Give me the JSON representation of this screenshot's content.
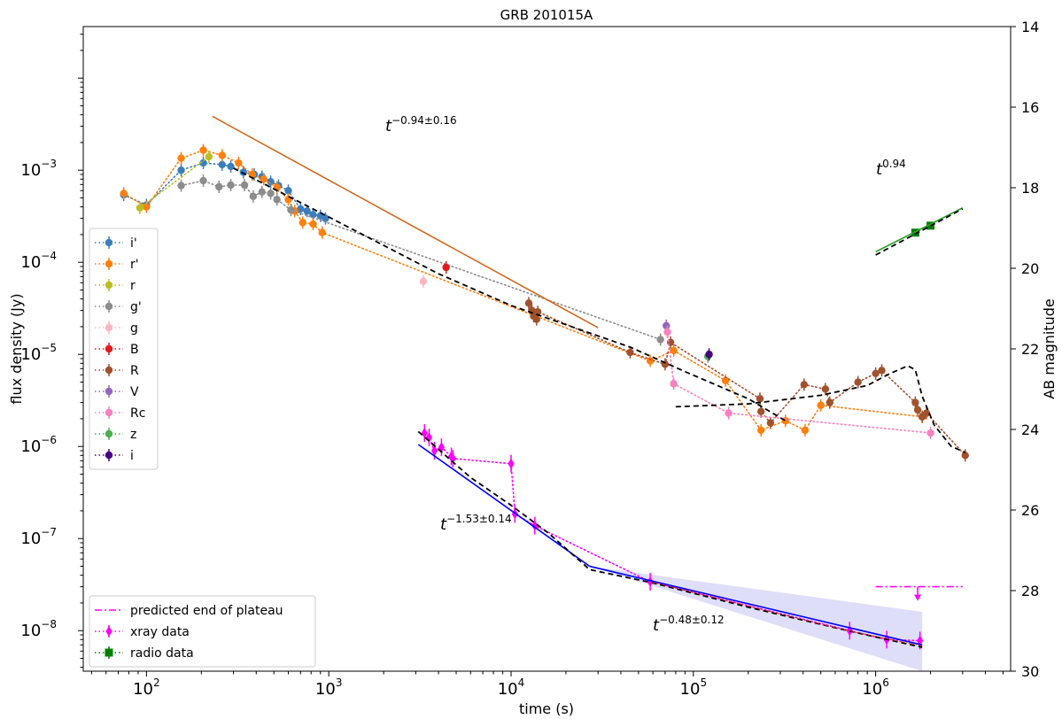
{
  "chart_data": {
    "type": "scatter",
    "title": "GRB 201015A",
    "xlabel": "time (s)",
    "ylabel": "flux density (Jy)",
    "y2label": "AB magnitude",
    "xscale": "log",
    "yscale": "log",
    "xlim": [
      45,
      5500000
    ],
    "ylim": [
      3.63e-09,
      0.0363
    ],
    "y2lim": [
      30,
      14
    ],
    "grid": false,
    "x_ticks": [
      {
        "value": 100,
        "base": "10",
        "exp": "2"
      },
      {
        "value": 1000,
        "base": "10",
        "exp": "3"
      },
      {
        "value": 10000,
        "base": "10",
        "exp": "4"
      },
      {
        "value": 100000,
        "base": "10",
        "exp": "5"
      },
      {
        "value": 1000000,
        "base": "10",
        "exp": "6"
      }
    ],
    "y_ticks": [
      {
        "value": 1e-08,
        "base": "10",
        "exp": "−8"
      },
      {
        "value": 1e-07,
        "base": "10",
        "exp": "−7"
      },
      {
        "value": 1e-06,
        "base": "10",
        "exp": "−6"
      },
      {
        "value": 1e-05,
        "base": "10",
        "exp": "−5"
      },
      {
        "value": 0.0001,
        "base": "10",
        "exp": "−4"
      },
      {
        "value": 0.001,
        "base": "10",
        "exp": "−3"
      }
    ],
    "y2_ticks": [
      "14",
      "16",
      "18",
      "20",
      "22",
      "24",
      "26",
      "28",
      "30"
    ],
    "series": [
      {
        "name": "i'",
        "color": "#3c7ebb",
        "marker": "circle",
        "points": [
          [
            75,
            0.00054
          ],
          [
            100,
            0.00042
          ],
          [
            155,
            0.001
          ],
          [
            205,
            0.0012
          ],
          [
            260,
            0.00115
          ],
          [
            290,
            0.0011
          ],
          [
            340,
            0.00095
          ],
          [
            390,
            0.0009
          ],
          [
            430,
            0.00085
          ],
          [
            480,
            0.00075
          ],
          [
            530,
            0.00068
          ],
          [
            600,
            0.0006
          ],
          [
            700,
            0.00038
          ],
          [
            760,
            0.00036
          ],
          [
            820,
            0.00033
          ],
          [
            900,
            0.00032
          ],
          [
            960,
            0.0003
          ]
        ]
      },
      {
        "name": "r'",
        "color": "#ff7f0e",
        "marker": "circle",
        "points": [
          [
            75,
            0.00056
          ],
          [
            100,
            0.0004
          ],
          [
            155,
            0.00135
          ],
          [
            205,
            0.00165
          ],
          [
            260,
            0.00145
          ],
          [
            320,
            0.0012
          ],
          [
            380,
            0.0009
          ],
          [
            440,
            0.0008
          ],
          [
            520,
            0.00065
          ],
          [
            600,
            0.00048
          ],
          [
            650,
            0.00036
          ],
          [
            720,
            0.00027
          ],
          [
            820,
            0.00026
          ],
          [
            920,
            0.00021
          ],
          [
            58000,
            8.5e-06
          ],
          [
            78000,
            1.1e-05
          ],
          [
            150000,
            5.2e-06
          ],
          [
            235000,
            1.5e-06
          ],
          [
            320000,
            1.9e-06
          ],
          [
            410000,
            1.5e-06
          ],
          [
            500000,
            2.8e-06
          ],
          [
            1800000,
            2.1e-06
          ]
        ]
      },
      {
        "name": "r",
        "color": "#bcbd22",
        "marker": "circle",
        "points": [
          [
            92,
            0.00039
          ],
          [
            220,
            0.0014
          ]
        ]
      },
      {
        "name": "g'",
        "color": "#8c8c8c",
        "marker": "circle",
        "points": [
          [
            155,
            0.00068
          ],
          [
            205,
            0.00077
          ],
          [
            250,
            0.00066
          ],
          [
            290,
            0.00069
          ],
          [
            345,
            0.00069
          ],
          [
            385,
            0.00052
          ],
          [
            430,
            0.00058
          ],
          [
            480,
            0.00056
          ],
          [
            520,
            0.00048
          ],
          [
            620,
            0.00037
          ],
          [
            66000,
            1.45e-05
          ]
        ]
      },
      {
        "name": "g",
        "color": "#ffb6c1",
        "marker": "circle",
        "points": [
          [
            3300,
            6.2e-05
          ]
        ]
      },
      {
        "name": "B",
        "color": "#e4191c",
        "marker": "circle",
        "points": [
          [
            4400,
            8.8e-05
          ]
        ]
      },
      {
        "name": "R",
        "color": "#a0522d",
        "marker": "circle",
        "points": [
          [
            12500,
            3.6e-05
          ],
          [
            13000,
            3e-05
          ],
          [
            13300,
            2.6e-05
          ],
          [
            13800,
            2.4e-05
          ],
          [
            14000,
            2.9e-05
          ],
          [
            45000,
            1.05e-05
          ],
          [
            70000,
            7.8e-06
          ],
          [
            75000,
            1.35e-05
          ],
          [
            232000,
            3.3e-06
          ],
          [
            235000,
            2.4e-06
          ],
          [
            265000,
            1.8e-06
          ],
          [
            405000,
            4.7e-06
          ],
          [
            530000,
            4.2e-06
          ],
          [
            560000,
            3e-06
          ],
          [
            800000,
            5e-06
          ],
          [
            1000000,
            6.2e-06
          ],
          [
            1080000,
            6.7e-06
          ],
          [
            1650000,
            3e-06
          ],
          [
            1700000,
            2.5e-06
          ],
          [
            1800000,
            2.1e-06
          ],
          [
            1900000,
            2.3e-06
          ],
          [
            3100000,
            8e-07
          ]
        ]
      },
      {
        "name": "V",
        "color": "#9467bd",
        "marker": "circle",
        "points": [
          [
            71000,
            2.05e-05
          ]
        ]
      },
      {
        "name": "Rc",
        "color": "#f781bf",
        "marker": "circle",
        "points": [
          [
            72000,
            1.75e-05
          ],
          [
            78000,
            4.8e-06
          ],
          [
            156000,
            2.3e-06
          ],
          [
            2000000,
            1.4e-06
          ]
        ]
      },
      {
        "name": "z",
        "color": "#4caf50",
        "marker": "circle",
        "points": [
          [
            120000,
            9.5e-06
          ]
        ]
      },
      {
        "name": "i",
        "color": "#4b0082",
        "marker": "circle",
        "points": [
          [
            122000,
            1e-05
          ]
        ]
      }
    ],
    "xray_data": {
      "name": "xray data",
      "color": "#ff00ff",
      "marker": "diamond",
      "points": [
        [
          3350,
          1.4e-06
        ],
        [
          3550,
          1.25e-06
        ],
        [
          3800,
          9e-07
        ],
        [
          4150,
          9.8e-07
        ],
        [
          4700,
          7.8e-07
        ],
        [
          4800,
          7.4e-07
        ],
        [
          10000,
          6.5e-07
        ],
        [
          10500,
          1.85e-07
        ],
        [
          13500,
          1.38e-07
        ],
        [
          58000,
          3.4e-08
        ],
        [
          720000,
          1e-08
        ],
        [
          1150000,
          8e-09
        ],
        [
          1750000,
          7.8e-09
        ]
      ]
    },
    "radio_data": {
      "name": "radio data",
      "color": "#008000",
      "marker": "square",
      "points": [
        [
          1650000,
          0.00021
        ],
        [
          2000000,
          0.00025
        ]
      ]
    },
    "fits": [
      {
        "label": "t−0.94±0.16",
        "base": "t",
        "exp": "−0.94±0.16",
        "color": "#d2691e",
        "from": [
          230,
          0.00385
        ],
        "to": [
          30000,
          1.95e-05
        ]
      },
      {
        "label": "t−1.53±0.14",
        "base": "t",
        "exp": "−1.53±0.14",
        "color": "#0000ff",
        "from": [
          3100,
          1.05e-06
        ],
        "to": [
          27000,
          5e-08
        ]
      },
      {
        "label": "t−0.48±0.12",
        "base": "t",
        "exp": "−0.48±0.12",
        "color": "#0000ff",
        "from": [
          27000,
          5e-08
        ],
        "to": [
          1800000,
          7e-09
        ]
      },
      {
        "label": "t0.94",
        "base": "t",
        "exp": "0.94",
        "color": "#2ca02c",
        "from": [
          1000000,
          0.00013
        ],
        "to": [
          3000000,
          0.00039
        ]
      }
    ],
    "model_optical": [
      [
        300,
        0.00105
      ],
      [
        1000,
        0.00031
      ],
      [
        4000,
        7.5e-05
      ],
      [
        10000,
        3.4e-05
      ],
      [
        20000,
        2.1e-05
      ],
      [
        45000,
        1.2e-05
      ],
      [
        90000,
        6.5e-06
      ],
      [
        200000,
        3.3e-06
      ],
      [
        320000,
        1.9e-06
      ]
    ],
    "model_late": [
      [
        80000,
        2.7e-06
      ],
      [
        200000,
        2.9e-06
      ],
      [
        500000,
        3.6e-06
      ],
      [
        900000,
        4.6e-06
      ],
      [
        1200000,
        6.2e-06
      ],
      [
        1500000,
        7.5e-06
      ],
      [
        1650000,
        6.8e-06
      ],
      [
        1800000,
        3.5e-06
      ],
      [
        2100000,
        1.7e-06
      ],
      [
        2600000,
        1e-06
      ],
      [
        3100000,
        8.6e-07
      ]
    ],
    "model_xray": [
      [
        3100,
        1.45e-06
      ],
      [
        6000,
        4.6e-07
      ],
      [
        10000,
        2.3e-07
      ],
      [
        16000,
        1.15e-07
      ],
      [
        27000,
        4.6e-08
      ],
      [
        60000,
        3.3e-08
      ],
      [
        200000,
        1.8e-08
      ],
      [
        700000,
        1e-08
      ],
      [
        1800000,
        6.6e-09
      ]
    ],
    "model_radio": [
      [
        1000000,
        0.00012
      ],
      [
        3000000,
        0.00038
      ]
    ],
    "uncertainty_band": {
      "color": "#c8c8f5",
      "upper": [
        [
          27000,
          5e-08
        ],
        [
          1800000,
          1.6e-08
        ]
      ],
      "lower": [
        [
          27000,
          5e-08
        ],
        [
          1800000,
          3.63e-09
        ]
      ]
    },
    "plateau_end": {
      "label": "predicted end of plateau",
      "color": "#ff00ff",
      "x": [
        1000000,
        3000000
      ],
      "y": 3e-08,
      "arrow_x": 1700000
    },
    "legend_upper": [
      "i'",
      "r'",
      "r",
      "g'",
      "g",
      "B",
      "R",
      "V",
      "Rc",
      "z",
      "i"
    ],
    "legend_lower": [
      "predicted end of plateau",
      "xray data",
      "radio data"
    ]
  }
}
